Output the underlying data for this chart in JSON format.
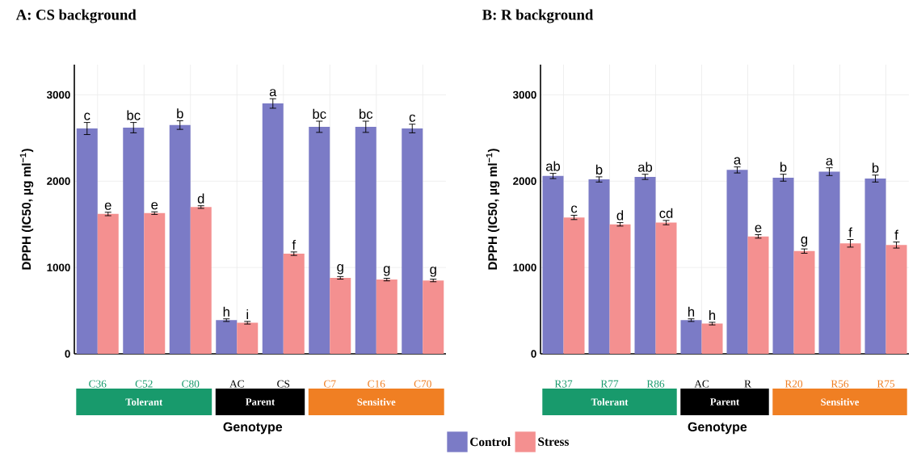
{
  "chart_data": [
    {
      "type": "bar",
      "title": "A: CS background",
      "xlabel": "Genotype",
      "ylabel": "DPPH (IC50, µg ml$^{−1}$)",
      "categories": [
        "C36",
        "C52",
        "C80",
        "AC",
        "CS",
        "C7",
        "C16",
        "C70"
      ],
      "series": [
        {
          "name": "Control",
          "color": "#7b7bc6",
          "values": [
            2610,
            2620,
            2650,
            390,
            2900,
            2630,
            2630,
            2610
          ],
          "errors": [
            70,
            60,
            50,
            15,
            55,
            65,
            65,
            50
          ],
          "value_labels": [
            "c",
            "bc",
            "b",
            "h",
            "a",
            "bc",
            "bc",
            "c"
          ]
        },
        {
          "name": "Stress",
          "color": "#f49090",
          "values": [
            1620,
            1630,
            1700,
            360,
            1160,
            880,
            860,
            850
          ],
          "errors": [
            20,
            15,
            15,
            15,
            20,
            15,
            15,
            15
          ],
          "value_labels": [
            "e",
            "e",
            "d",
            "i",
            "f",
            "g",
            "g",
            "g"
          ]
        }
      ],
      "annotations": [
        "Tolerant",
        "Parent",
        "Sensitive"
      ],
      "ylim": [
        0,
        3350
      ],
      "yticks": [
        0,
        1000,
        2000,
        3000
      ],
      "grid": true,
      "legend": "bottom"
    },
    {
      "type": "bar",
      "title": "B: R background",
      "xlabel": "Genotype",
      "ylabel": "DPPH (IC50, µg ml$^{−1}$)",
      "categories": [
        "R37",
        "R77",
        "R86",
        "AC",
        "R",
        "R20",
        "R56",
        "R75"
      ],
      "series": [
        {
          "color": "#7b7bc6",
          "values": [
            2060,
            2020,
            2050,
            390,
            2130,
            2040,
            2110,
            2030
          ],
          "errors": [
            30,
            30,
            30,
            15,
            35,
            40,
            45,
            40
          ],
          "value_labels": [
            "ab",
            "b",
            "ab",
            "h",
            "a",
            "b",
            "a",
            "b"
          ]
        },
        {
          "color": "#f49090",
          "values": [
            1580,
            1500,
            1520,
            350,
            1360,
            1190,
            1280,
            1260
          ],
          "errors": [
            25,
            20,
            25,
            15,
            20,
            25,
            44,
            35
          ],
          "value_labels": [
            "c",
            "d",
            "cd",
            "h",
            "e",
            "g",
            "f",
            "f"
          ]
        }
      ],
      "annotations": [
        "Tolerant",
        "Parent",
        "Sensitive"
      ],
      "ylim": [
        0,
        3350
      ],
      "yticks": [
        0,
        1000,
        2000,
        3000
      ],
      "grid": true
    }
  ]
}
